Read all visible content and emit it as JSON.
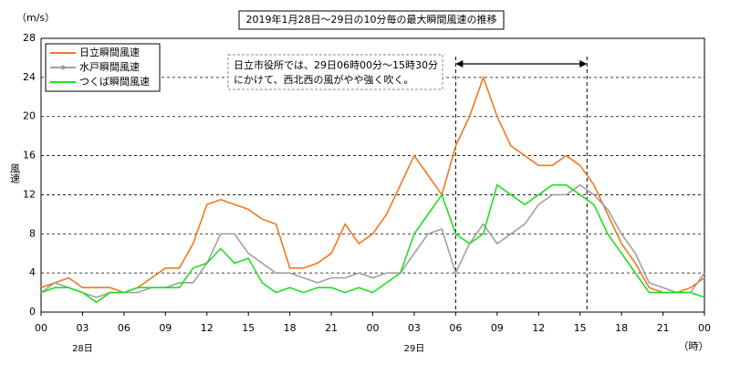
{
  "chart_data": {
    "type": "line",
    "title": "2019年1月28日～29日の10分毎の最大瞬間風速の推移",
    "y_unit": "（m/s）",
    "ylabel": "風速",
    "x_unit": "（時）",
    "day_labels": [
      {
        "x": 3,
        "label": "28日"
      },
      {
        "x": 27,
        "label": "29日"
      }
    ],
    "annotation": {
      "lines": [
        "日立市役所では、29日06時00分～15時30分",
        "にかけて、西北西の風がやや強く吹く。"
      ],
      "span": [
        30,
        39.5
      ]
    },
    "xlim": [
      0,
      48
    ],
    "ylim": [
      0,
      28
    ],
    "yticks": [
      0,
      4,
      8,
      12,
      16,
      20,
      24,
      28
    ],
    "xticks": [
      {
        "value": 0,
        "label": "00"
      },
      {
        "value": 3,
        "label": "03"
      },
      {
        "value": 6,
        "label": "06"
      },
      {
        "value": 9,
        "label": "09"
      },
      {
        "value": 12,
        "label": "12"
      },
      {
        "value": 15,
        "label": "15"
      },
      {
        "value": 18,
        "label": "18"
      },
      {
        "value": 21,
        "label": "21"
      },
      {
        "value": 24,
        "label": "00"
      },
      {
        "value": 27,
        "label": "03"
      },
      {
        "value": 30,
        "label": "06"
      },
      {
        "value": 33,
        "label": "09"
      },
      {
        "value": 36,
        "label": "12"
      },
      {
        "value": 39,
        "label": "15"
      },
      {
        "value": 42,
        "label": "18"
      },
      {
        "value": 45,
        "label": "21"
      },
      {
        "value": 48,
        "label": "00"
      }
    ],
    "grid": true,
    "x": [
      0,
      1,
      2,
      3,
      4,
      5,
      6,
      7,
      8,
      9,
      10,
      11,
      12,
      13,
      14,
      15,
      16,
      17,
      18,
      19,
      20,
      21,
      22,
      23,
      24,
      25,
      26,
      27,
      28,
      29,
      30,
      31,
      32,
      33,
      34,
      35,
      36,
      37,
      38,
      39,
      40,
      41,
      42,
      43,
      44,
      45,
      46,
      47,
      48
    ],
    "series": [
      {
        "name": "日立瞬間風速",
        "color": "#f07820",
        "values": [
          2.5,
          3,
          3.5,
          2.5,
          2.5,
          2.5,
          2,
          2.5,
          3.5,
          4.5,
          4.5,
          7,
          11,
          11.5,
          11,
          10.5,
          9.5,
          9,
          4.5,
          4.5,
          5,
          6,
          9,
          7,
          8,
          10,
          13,
          16,
          14,
          12,
          17,
          20,
          24,
          20,
          17,
          16,
          15,
          15,
          16,
          15,
          13,
          10,
          7,
          5,
          2.5,
          2,
          2,
          2.5,
          3.5
        ]
      },
      {
        "name": "水戸瞬間風速",
        "color": "#a0a0a0",
        "values": [
          2,
          3,
          2.5,
          2,
          1.5,
          2,
          2,
          2,
          2.5,
          2.5,
          3,
          3,
          5,
          8,
          8,
          6,
          5,
          4,
          4,
          3.5,
          3,
          3.5,
          3.5,
          4,
          3.5,
          4,
          4,
          6,
          8,
          8.5,
          4,
          7,
          9,
          7,
          8,
          9,
          11,
          12,
          12,
          13,
          12,
          10.5,
          8,
          6,
          3,
          2.5,
          2,
          2,
          4
        ]
      },
      {
        "name": "つくば瞬間風速",
        "color": "#22dd22",
        "values": [
          2,
          2.5,
          2.5,
          2,
          1,
          2,
          2,
          2.5,
          2.5,
          2.5,
          2.5,
          4.5,
          5,
          6.5,
          5,
          5.5,
          3,
          2,
          2.5,
          2,
          2.5,
          2.5,
          2,
          2.5,
          2,
          3,
          4,
          8,
          10,
          12,
          8,
          7,
          8,
          13,
          12,
          11,
          12,
          13,
          13,
          12,
          11,
          8,
          6,
          4,
          2,
          2,
          2,
          2,
          1.5
        ]
      }
    ]
  }
}
